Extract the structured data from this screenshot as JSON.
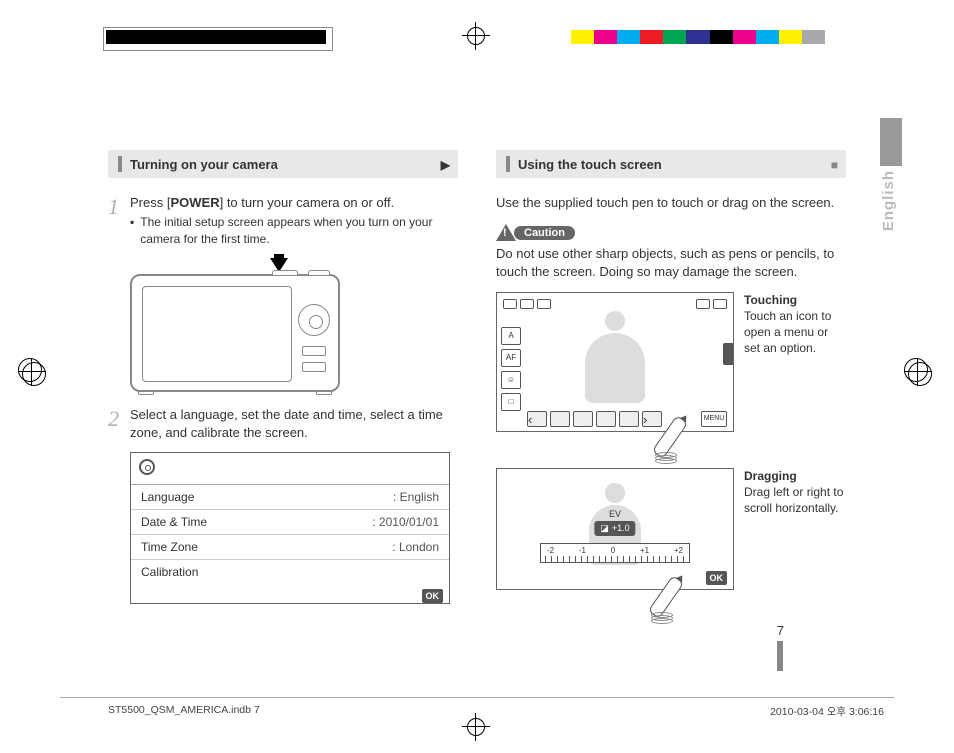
{
  "colorbar": [
    "#ffffff",
    "#fff200",
    "#ec008c",
    "#00aeef",
    "#ed1c24",
    "#00a651",
    "#2e3192",
    "#000000",
    "#ec008c",
    "#00aeef",
    "#fff200",
    "#a7a9ac",
    "#ffffff"
  ],
  "side_tab": "English",
  "left": {
    "heading": "Turning on your camera",
    "step1_text_a": "Press [",
    "step1_power": "POWER",
    "step1_text_b": "] to turn your camera on or off.",
    "step1_bullet": "The initial setup screen appears when you turn on your camera for the first time.",
    "step2_text": "Select a language, set the date and time, select a time zone, and calibrate the screen.",
    "menu": {
      "rows": [
        {
          "k": "Language",
          "v": ": English"
        },
        {
          "k": "Date & Time",
          "v": ": 2010/01/01"
        },
        {
          "k": "Time Zone",
          "v": ": London"
        },
        {
          "k": "Calibration",
          "v": ""
        }
      ],
      "ok": "OK"
    }
  },
  "right": {
    "heading": "Using the touch screen",
    "intro": "Use the supplied touch pen to touch or drag on the screen.",
    "caution_label": "Caution",
    "caution_text": "Do not use other sharp objects, such as pens or pencils, to touch the screen. Doing so may damage the screen.",
    "touching_h": "Touching",
    "touching_t": "Touch an icon to open a menu or set an option.",
    "ui_left_icons": [
      "A",
      "AF",
      "☺",
      "□"
    ],
    "ui_menu": "MENU",
    "dragging_h": "Dragging",
    "dragging_t": "Drag left or right to scroll horizontally.",
    "ev_label": "EV",
    "ev_value": "+1.0",
    "ruler_ticks": [
      "-2",
      "-1",
      "0",
      "+1",
      "+2"
    ],
    "ok": "OK"
  },
  "page_number": "7",
  "footer_left": "ST5500_QSM_AMERICA.indb   7",
  "footer_right": "2010-03-04   오후 3:06:16"
}
